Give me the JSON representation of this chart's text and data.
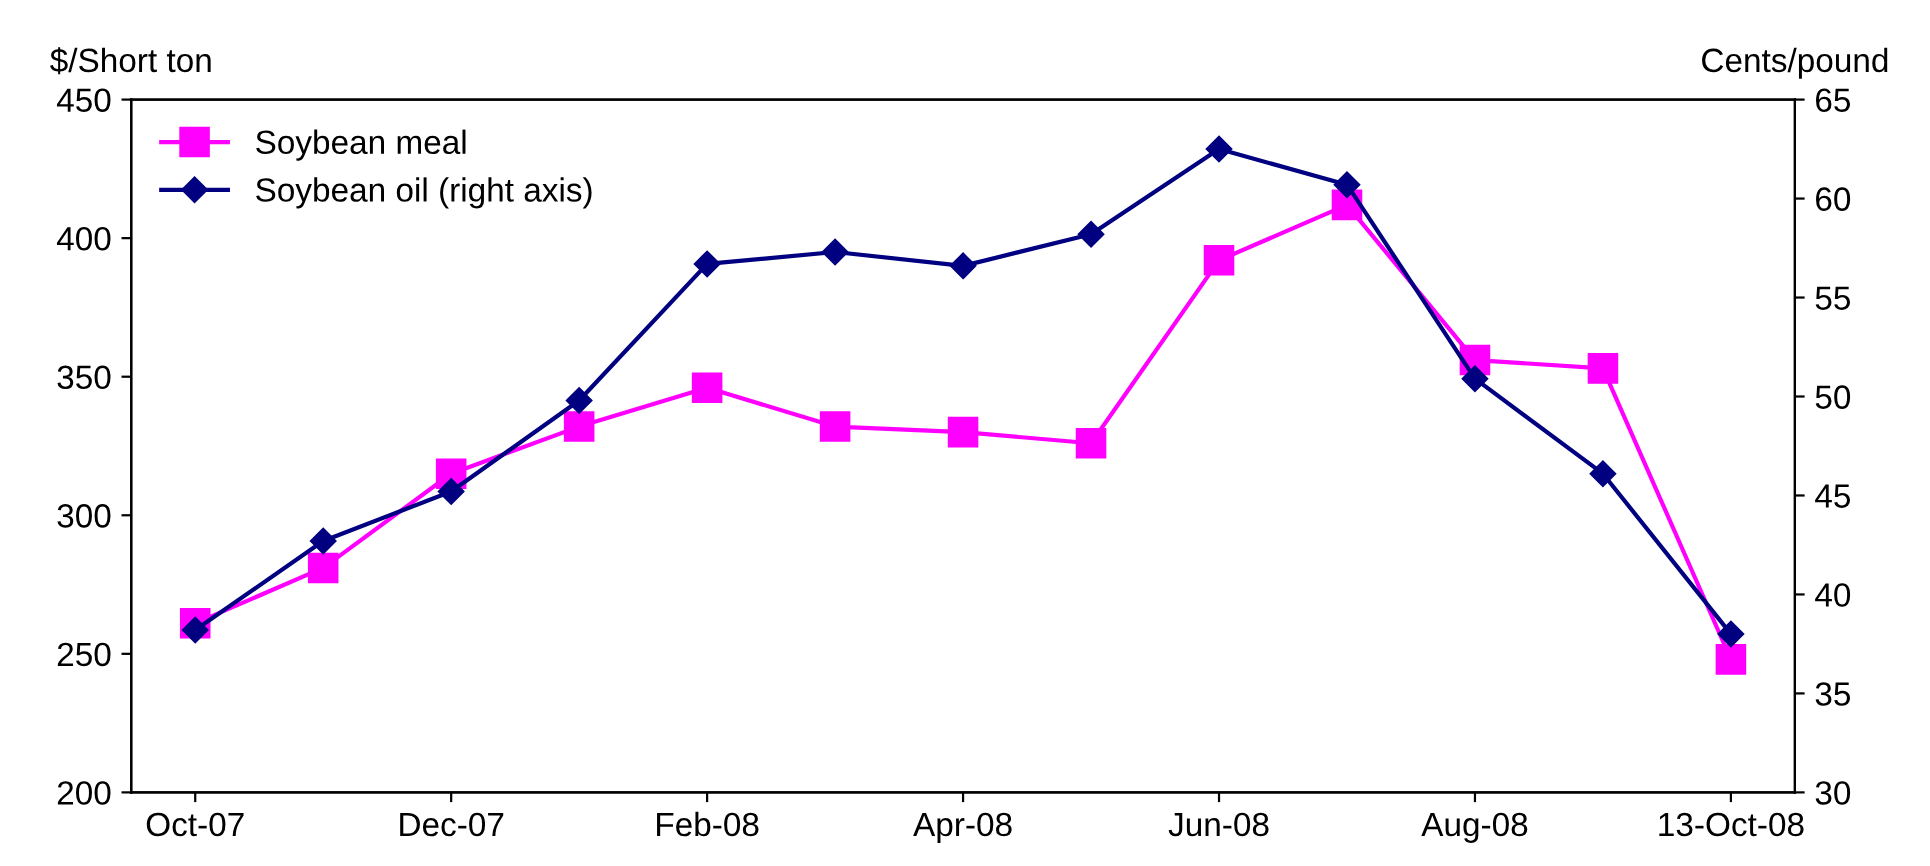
{
  "chart_data": {
    "type": "line",
    "ylabel": "$/Short ton",
    "y2label": "Cents/pound",
    "categories": [
      "Oct-07",
      null,
      "Dec-07",
      null,
      "Feb-08",
      null,
      "Apr-08",
      null,
      "Jun-08",
      null,
      "Aug-08",
      null,
      "13-Oct-08"
    ],
    "series": [
      {
        "name": "Soybean meal",
        "color": "#ff00ff",
        "marker": "square",
        "values": [
          261,
          281,
          315,
          332,
          346,
          332,
          330,
          326,
          392,
          412,
          356,
          353,
          248
        ]
      },
      {
        "name": "Soybean oil (right axis)",
        "color": "#000080",
        "marker": "diamond",
        "axis": "y2",
        "values": [
          38.2,
          42.7,
          45.2,
          49.8,
          56.7,
          57.3,
          56.6,
          58.2,
          62.5,
          60.7,
          50.9,
          46.1,
          38.0
        ]
      }
    ],
    "ylim": [
      200,
      450
    ],
    "yticks": [
      200,
      250,
      300,
      350,
      400,
      450
    ],
    "y2lim": [
      30,
      65
    ],
    "y2ticks": [
      30,
      35,
      40,
      45,
      50,
      55,
      60,
      65
    ],
    "grid": false,
    "legend": "top left",
    "line_style": "solid"
  }
}
